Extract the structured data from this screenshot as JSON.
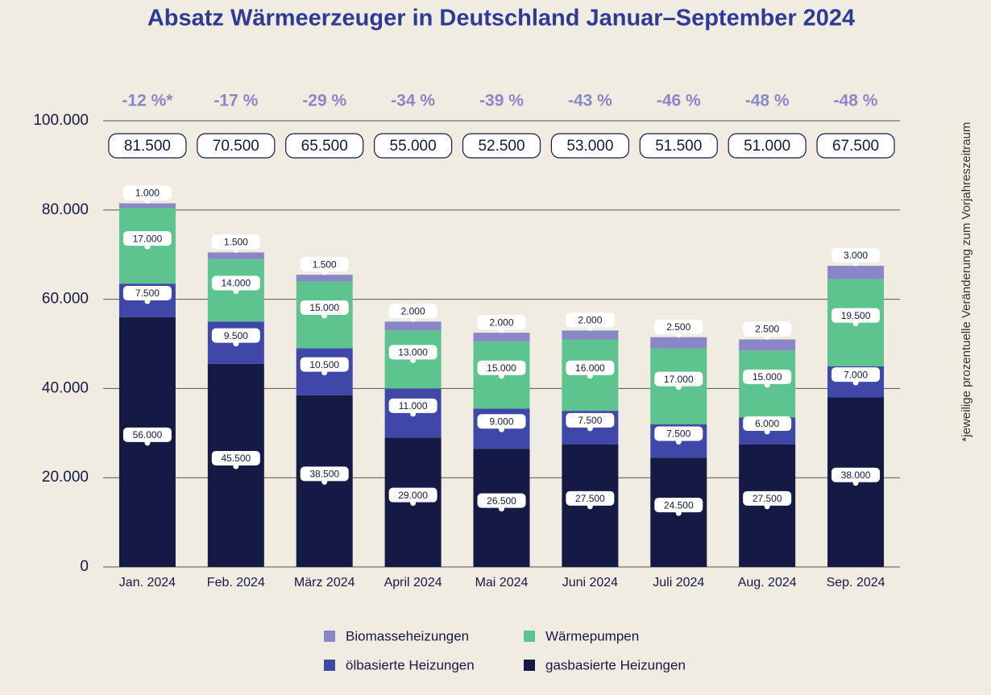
{
  "chart_data": {
    "type": "stacked-bar",
    "title": "Absatz Wärmeerzeuger in Deutschland Januar–September 2024",
    "note": "*jeweilige prozentuelle Veränderung zum Vorjahreszeitraum",
    "categories": [
      "Jan. 2024",
      "Feb. 2024",
      "März 2024",
      "April 2024",
      "Mai 2024",
      "Juni 2024",
      "Juli 2024",
      "Aug. 2024",
      "Sep. 2024"
    ],
    "series": [
      {
        "name": "gasbasierte Heizungen",
        "color": "#141a44",
        "values": [
          56000,
          45500,
          38500,
          29000,
          26500,
          27500,
          24500,
          27500,
          38000
        ],
        "value_labels": [
          "56.000",
          "45.500",
          "38.500",
          "29.000",
          "26.500",
          "27.500",
          "24.500",
          "27.500",
          "38.000"
        ]
      },
      {
        "name": "ölbasierte Heizungen",
        "color": "#3f47a8",
        "values": [
          7500,
          9500,
          10500,
          11000,
          9000,
          7500,
          7500,
          6000,
          7000
        ],
        "value_labels": [
          "7.500",
          "9.500",
          "10.500",
          "11.000",
          "9.000",
          "7.500",
          "7.500",
          "6.000",
          "7.000"
        ]
      },
      {
        "name": "Wärmepumpen",
        "color": "#5ec48f",
        "values": [
          17000,
          14000,
          15000,
          13000,
          15000,
          16000,
          17000,
          15000,
          19500
        ],
        "value_labels": [
          "17.000",
          "14.000",
          "15.000",
          "13.000",
          "15.000",
          "16.000",
          "17.000",
          "15.000",
          "19.500"
        ]
      },
      {
        "name": "Biomasseheizungen",
        "color": "#8a87c9",
        "values": [
          1000,
          1500,
          1500,
          2000,
          2000,
          2000,
          2500,
          2500,
          3000
        ],
        "value_labels": [
          "1.000",
          "1.500",
          "1.500",
          "2.000",
          "2.000",
          "2.000",
          "2.500",
          "2.500",
          "3.000"
        ]
      }
    ],
    "totals": {
      "values": [
        81500,
        70500,
        65500,
        55000,
        52500,
        53000,
        51500,
        51000,
        67500
      ],
      "value_labels": [
        "81.500",
        "70.500",
        "65.500",
        "55.000",
        "52.500",
        "53.000",
        "51.500",
        "51.000",
        "67.500"
      ]
    },
    "changes": {
      "values": [
        -12,
        -17,
        -29,
        -34,
        -39,
        -43,
        -46,
        -48,
        -48
      ],
      "value_labels": [
        "-12 %*",
        "-17 %",
        "-29 %",
        "-34 %",
        "-39 %",
        "-43 %",
        "-46 %",
        "-48 %",
        "-48 %"
      ]
    },
    "ylim": [
      0,
      100000
    ],
    "yticks": [
      0,
      {
        "value": 20000,
        "label": "20.000"
      },
      {
        "value": 40000,
        "label": "40.000"
      },
      {
        "value": 60000,
        "label": "60.000"
      },
      {
        "value": 80000,
        "label": "80.000"
      },
      {
        "value": 100000,
        "label": "100.000"
      }
    ],
    "grid": true
  }
}
